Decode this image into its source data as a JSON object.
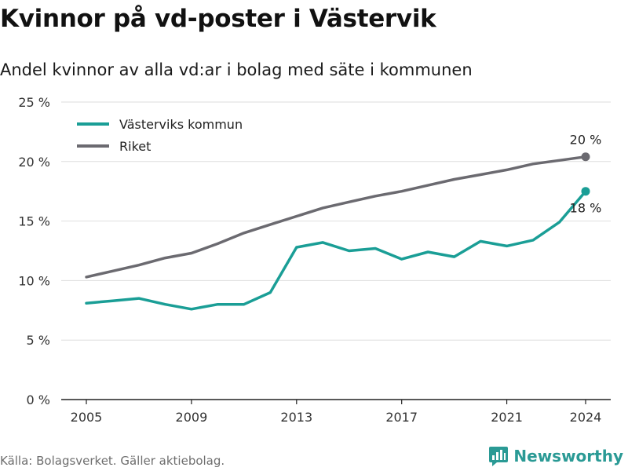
{
  "title": "Kvinnor på vd-poster i Västervik",
  "subtitle": "Andel kvinnor av alla vd:ar i bolag med säte i kommunen",
  "source": "Källa: Bolagsverket. Gäller aktiebolag.",
  "brand": {
    "name": "Newsworthy",
    "icon": "newsworthy-logo-icon",
    "color": "#2a9a95"
  },
  "chart_data": {
    "type": "line",
    "x": [
      2005,
      2006,
      2007,
      2008,
      2009,
      2010,
      2011,
      2012,
      2013,
      2014,
      2015,
      2016,
      2017,
      2018,
      2019,
      2020,
      2021,
      2022,
      2023,
      2024
    ],
    "xticks": [
      2005,
      2009,
      2013,
      2017,
      2021,
      2024
    ],
    "xtick_labels": [
      "2005",
      "2009",
      "2013",
      "2017",
      "2021",
      "2024"
    ],
    "ylim": [
      0,
      25
    ],
    "yticks": [
      0,
      5,
      10,
      15,
      20,
      25
    ],
    "ytick_labels": [
      "0 %",
      "5 %",
      "10 %",
      "15 %",
      "20 %",
      "25 %"
    ],
    "grid": true,
    "legend_position": "top-left",
    "series": [
      {
        "name": "Västerviks kommun",
        "color": "#1a9e96",
        "values": [
          8.1,
          8.3,
          8.5,
          8.0,
          7.6,
          8.0,
          8.0,
          9.0,
          12.8,
          13.2,
          12.5,
          12.7,
          11.8,
          12.4,
          12.0,
          13.3,
          12.9,
          13.4,
          14.9,
          17.5
        ],
        "end_label": "18 %"
      },
      {
        "name": "Riket",
        "color": "#6b6a70",
        "values": [
          10.3,
          10.8,
          11.3,
          11.9,
          12.3,
          13.1,
          14.0,
          14.7,
          15.4,
          16.1,
          16.6,
          17.1,
          17.5,
          18.0,
          18.5,
          18.9,
          19.3,
          19.8,
          20.1,
          20.4
        ],
        "end_label": "20 %"
      }
    ]
  }
}
